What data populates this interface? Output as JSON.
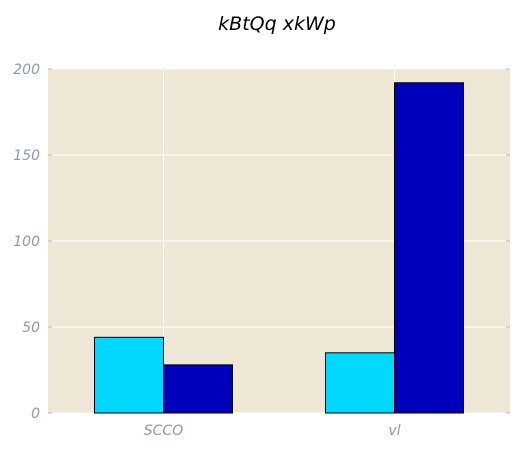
{
  "chart_data": {
    "type": "bar",
    "title": "kBtQq xkWp",
    "xlabel": "",
    "ylabel": "",
    "categories": [
      "SCCO",
      "vl"
    ],
    "series": [
      {
        "values": [
          44,
          35
        ],
        "color": "#00d8ff"
      },
      {
        "values": [
          28,
          192
        ],
        "color": "#0000bb"
      }
    ],
    "ylim": [
      0,
      200
    ],
    "yticks": [
      0,
      50,
      100,
      150,
      200
    ],
    "grid": true,
    "legend": "none",
    "colors": {
      "plot_background": "#efe7d5",
      "grid": "#ffffff",
      "tick_text": "#8a9aa6"
    }
  }
}
